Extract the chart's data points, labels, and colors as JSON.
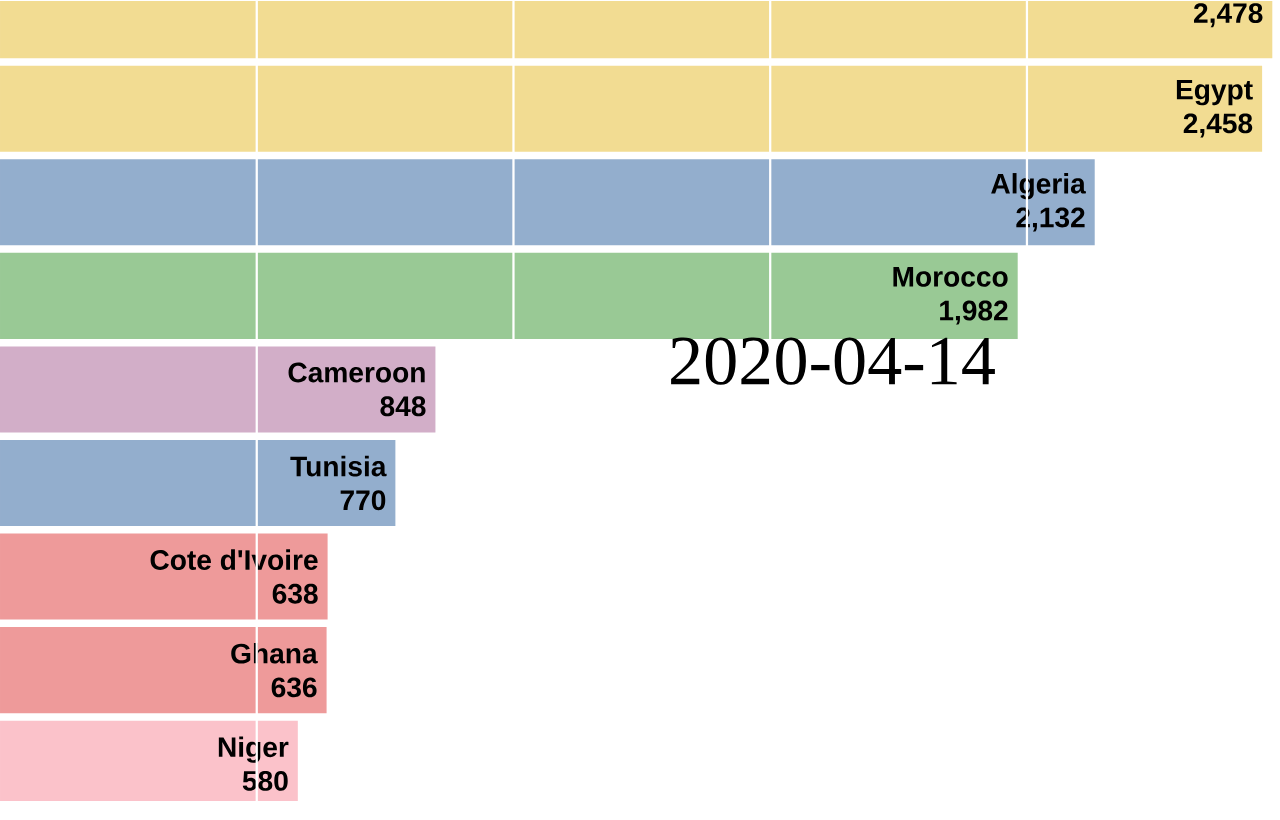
{
  "chart_data": {
    "type": "bar",
    "orientation": "horizontal",
    "categories": [
      null,
      "Egypt",
      "Algeria",
      "Morocco",
      "Cameroon",
      "Tunisia",
      "Cote d'Ivoire",
      "Ghana",
      "Niger"
    ],
    "values": [
      2478,
      2458,
      2132,
      1982,
      848,
      770,
      638,
      636,
      580
    ],
    "value_labels": [
      "2,478",
      "2,458",
      "2,132",
      "1,982",
      "848",
      "770",
      "638",
      "636",
      "580"
    ],
    "colors": [
      "#f2dc92",
      "#f2dc92",
      "#93aecd",
      "#99c995",
      "#d2aec8",
      "#93aecd",
      "#ee9a9a",
      "#ee9a9a",
      "#fbc2ca"
    ],
    "xticks": [
      {
        "value": 500,
        "label": null
      },
      {
        "value": 1000,
        "label": null
      },
      {
        "value": 1500,
        "label": null
      },
      {
        "value": 2000,
        "label": null
      }
    ],
    "grid": "x",
    "annotations": [
      "2020-04-14"
    ]
  }
}
